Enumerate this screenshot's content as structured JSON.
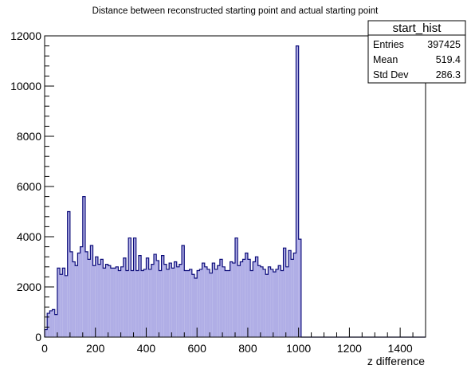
{
  "chart_data": {
    "type": "histogram",
    "title": "Distance between reconstructed starting point and actual starting point",
    "xlabel": "z difference",
    "ylabel": "",
    "xlim": [
      0,
      1500
    ],
    "ylim": [
      0,
      12000
    ],
    "x_ticks": [
      0,
      200,
      400,
      600,
      800,
      1000,
      1200,
      1400
    ],
    "y_ticks": [
      0,
      2000,
      4000,
      6000,
      8000,
      10000,
      12000
    ],
    "grid": false,
    "line_color": "#0d0d7a",
    "fill_color": "#b0aee6",
    "bin_width": 10,
    "bins_start": 0,
    "values": [
      300,
      950,
      1050,
      1100,
      900,
      2750,
      2500,
      2750,
      2450,
      5000,
      3400,
      3000,
      2850,
      3350,
      3600,
      5600,
      3400,
      3100,
      3650,
      2850,
      3200,
      2900,
      3100,
      2750,
      2900,
      2850,
      2750,
      2750,
      2800,
      2650,
      2800,
      3150,
      2650,
      3950,
      2650,
      3950,
      2650,
      3250,
      2650,
      2700,
      3150,
      2700,
      2900,
      3300,
      3050,
      2650,
      3250,
      2900,
      2700,
      2950,
      2750,
      3000,
      2800,
      2900,
      3650,
      2650,
      2650,
      2700,
      2500,
      2350,
      2650,
      2700,
      2950,
      2800,
      2700,
      2550,
      2950,
      2700,
      2850,
      3100,
      2800,
      2650,
      2650,
      3000,
      2950,
      3950,
      2850,
      3000,
      3100,
      3350,
      3100,
      2650,
      3000,
      3200,
      2850,
      2800,
      2700,
      2500,
      2800,
      2700,
      2600,
      2700,
      2850,
      2650,
      3550,
      2800,
      3450,
      3100,
      3350,
      11600,
      3900,
      0,
      0,
      0,
      0,
      0,
      0,
      0,
      0,
      0,
      0,
      0,
      0,
      0,
      0,
      0,
      0,
      0,
      0,
      0,
      0,
      0,
      0,
      0,
      0,
      0,
      0,
      0,
      0,
      0,
      0,
      0,
      0,
      0,
      0,
      0,
      0,
      0,
      0,
      0,
      0,
      0,
      0,
      0,
      0,
      0,
      0,
      0,
      0,
      0
    ]
  },
  "stats_box": {
    "name": "start_hist",
    "rows": [
      {
        "label": "Entries",
        "value": "397425"
      },
      {
        "label": "Mean",
        "value": "519.4"
      },
      {
        "label": "Std Dev",
        "value": "286.3"
      }
    ]
  }
}
